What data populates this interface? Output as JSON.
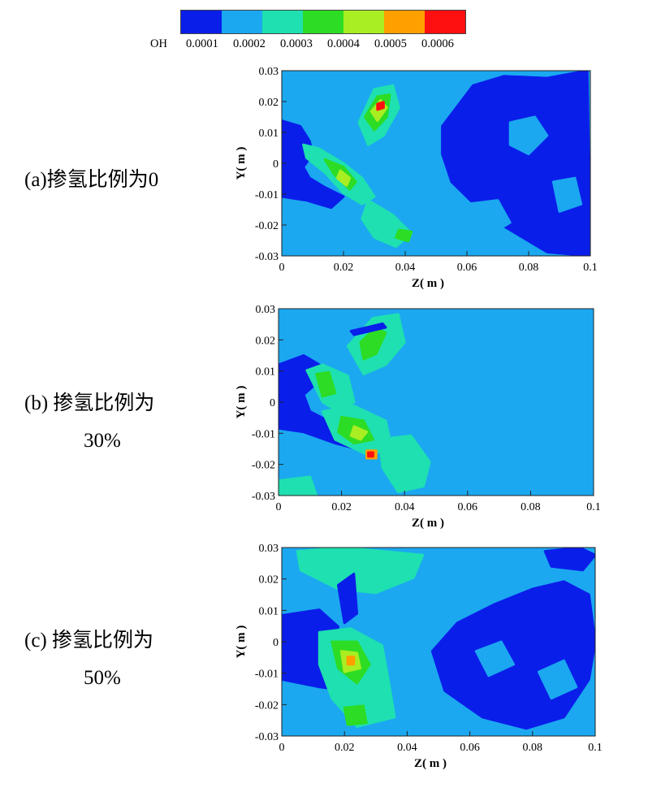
{
  "colorbar": {
    "variable": "OH",
    "ticks": [
      "0.0001",
      "0.0002",
      "0.0003",
      "0.0004",
      "0.0005",
      "0.0006"
    ],
    "colors": [
      "#0a1eea",
      "#1ba8f0",
      "#1ee0b0",
      "#2ddc24",
      "#a8ee22",
      "#ffa000",
      "#ff1010"
    ]
  },
  "chart_data": [
    {
      "type": "heatmap",
      "panel_label": "(a)掺氢比例为0",
      "variable": "OH",
      "xlabel": "Z( m )",
      "ylabel": "Y( m )",
      "xlim": [
        0,
        0.1
      ],
      "ylim": [
        -0.03,
        0.03
      ],
      "xticks": [
        "0",
        "0.02",
        "0.04",
        "0.06",
        "0.08",
        "0.1"
      ],
      "yticks": [
        "0.03",
        "0.02",
        "0.01",
        "0",
        "-0.01",
        "-0.02",
        "-0.03"
      ],
      "background_level": "0.0001-0.0002",
      "max_level": "0.0006"
    },
    {
      "type": "heatmap",
      "panel_label": [
        "(b) 掺氢比例为",
        "30%"
      ],
      "variable": "OH",
      "xlabel": "Z( m )",
      "ylabel": "Y( m )",
      "xlim": [
        0,
        0.1
      ],
      "ylim": [
        -0.03,
        0.03
      ],
      "xticks": [
        "0",
        "0.02",
        "0.04",
        "0.06",
        "0.08",
        "0.1"
      ],
      "yticks": [
        "0.03",
        "0.02",
        "0.01",
        "0",
        "-0.01",
        "-0.02",
        "-0.03"
      ],
      "background_level": "0.0001-0.0002",
      "max_level": "0.0006"
    },
    {
      "type": "heatmap",
      "panel_label": [
        "(c) 掺氢比例为",
        "50%"
      ],
      "variable": "OH",
      "xlabel": "Z( m )",
      "ylabel": "Y( m )",
      "xlim": [
        0,
        0.1
      ],
      "ylim": [
        -0.03,
        0.03
      ],
      "xticks": [
        "0",
        "0.02",
        "0.04",
        "0.06",
        "0.08",
        "0.1"
      ],
      "yticks": [
        "0.03",
        "0.02",
        "0.01",
        "0",
        "-0.01",
        "-0.02",
        "-0.03"
      ],
      "background_level": "0.0001-0.0002",
      "max_level": "0.0005"
    }
  ]
}
